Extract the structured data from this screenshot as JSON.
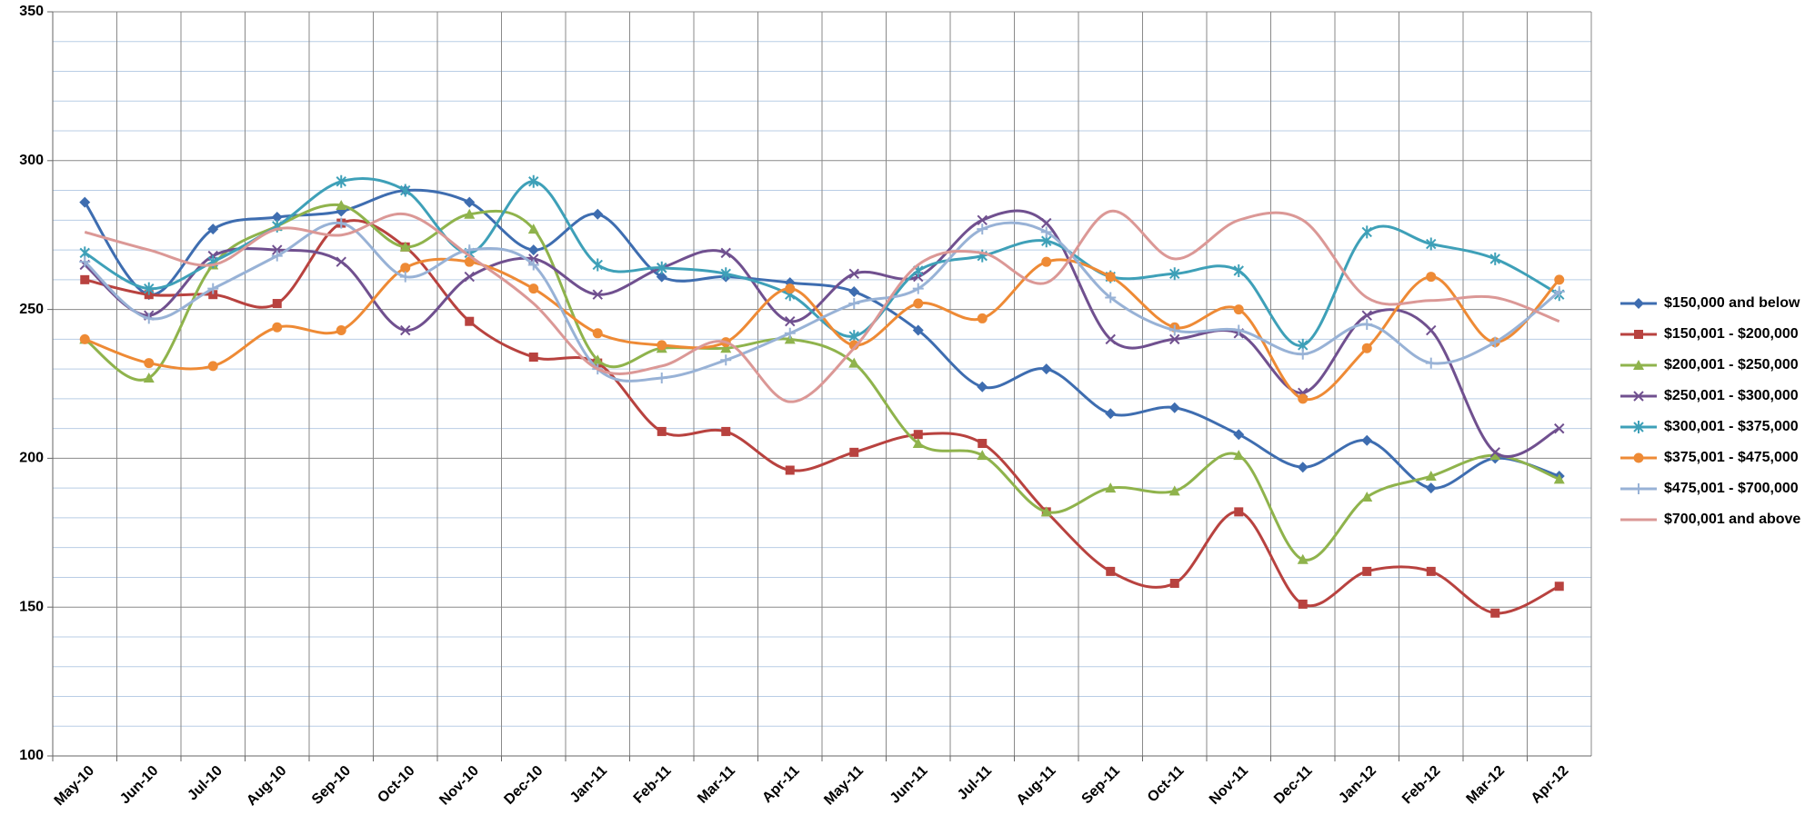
{
  "chart_data": {
    "type": "line",
    "categories": [
      "May-10",
      "Jun-10",
      "Jul-10",
      "Aug-10",
      "Sep-10",
      "Oct-10",
      "Nov-10",
      "Dec-10",
      "Jan-11",
      "Feb-11",
      "Mar-11",
      "Apr-11",
      "May-11",
      "Jun-11",
      "Jul-11",
      "Aug-11",
      "Sep-11",
      "Oct-11",
      "Nov-11",
      "Dec-11",
      "Jan-12",
      "Feb-12",
      "Mar-12",
      "Apr-12"
    ],
    "ylim": [
      100,
      350
    ],
    "yticks": [
      100,
      150,
      200,
      250,
      300,
      350
    ],
    "yminor_ticks": [
      110,
      120,
      130,
      140,
      160,
      170,
      180,
      190,
      210,
      220,
      230,
      240,
      260,
      270,
      280,
      290,
      310,
      320,
      330,
      340
    ],
    "grid": true,
    "smooth": true,
    "legend": "right",
    "series": [
      {
        "name": "$150,000 and below",
        "color": "#3e6db0",
        "marker": "diamond",
        "values": [
          286,
          255,
          277,
          281,
          283,
          290,
          286,
          270,
          282,
          261,
          261,
          259,
          256,
          243,
          224,
          230,
          215,
          217,
          208,
          197,
          206,
          190,
          200,
          194
        ]
      },
      {
        "name": "$150,001 - $200,000",
        "color": "#b8423f",
        "marker": "square",
        "values": [
          260,
          255,
          255,
          252,
          279,
          271,
          246,
          234,
          232,
          209,
          209,
          196,
          202,
          208,
          205,
          182,
          162,
          158,
          182,
          151,
          162,
          162,
          148,
          157
        ]
      },
      {
        "name": "$200,001 - $250,000",
        "color": "#8fb34c",
        "marker": "triangle",
        "values": [
          240,
          227,
          265,
          278,
          285,
          271,
          282,
          277,
          233,
          237,
          237,
          240,
          232,
          205,
          201,
          182,
          190,
          189,
          201,
          166,
          187,
          194,
          201,
          193
        ]
      },
      {
        "name": "$250,001 - $300,000",
        "color": "#70508f",
        "marker": "x",
        "values": [
          265,
          248,
          268,
          270,
          266,
          243,
          261,
          267,
          255,
          264,
          269,
          246,
          262,
          261,
          280,
          279,
          240,
          240,
          242,
          222,
          248,
          243,
          202,
          210
        ]
      },
      {
        "name": "$300,001 - $375,000",
        "color": "#3ea0b8",
        "marker": "star",
        "values": [
          269,
          257,
          266,
          278,
          293,
          290,
          269,
          293,
          265,
          264,
          262,
          255,
          241,
          263,
          268,
          273,
          261,
          262,
          263,
          238,
          276,
          272,
          267,
          255
        ]
      },
      {
        "name": "$375,001 - $475,000",
        "color": "#ee8a35",
        "marker": "circle",
        "values": [
          240,
          232,
          231,
          244,
          243,
          264,
          266,
          257,
          242,
          238,
          239,
          257,
          238,
          252,
          247,
          266,
          261,
          244,
          250,
          220,
          237,
          261,
          239,
          260
        ]
      },
      {
        "name": "$475,001 - $700,000",
        "color": "#98b2d6",
        "marker": "plus",
        "values": [
          266,
          247,
          257,
          268,
          279,
          261,
          270,
          265,
          230,
          227,
          233,
          242,
          252,
          257,
          277,
          276,
          254,
          243,
          243,
          235,
          245,
          232,
          239,
          256
        ]
      },
      {
        "name": "$700,001 and above",
        "color": "#db9896",
        "marker": "none",
        "values": [
          276,
          270,
          265,
          277,
          275,
          282,
          268,
          252,
          230,
          231,
          239,
          219,
          237,
          265,
          269,
          259,
          283,
          267,
          280,
          280,
          254,
          253,
          254,
          246
        ]
      }
    ]
  }
}
